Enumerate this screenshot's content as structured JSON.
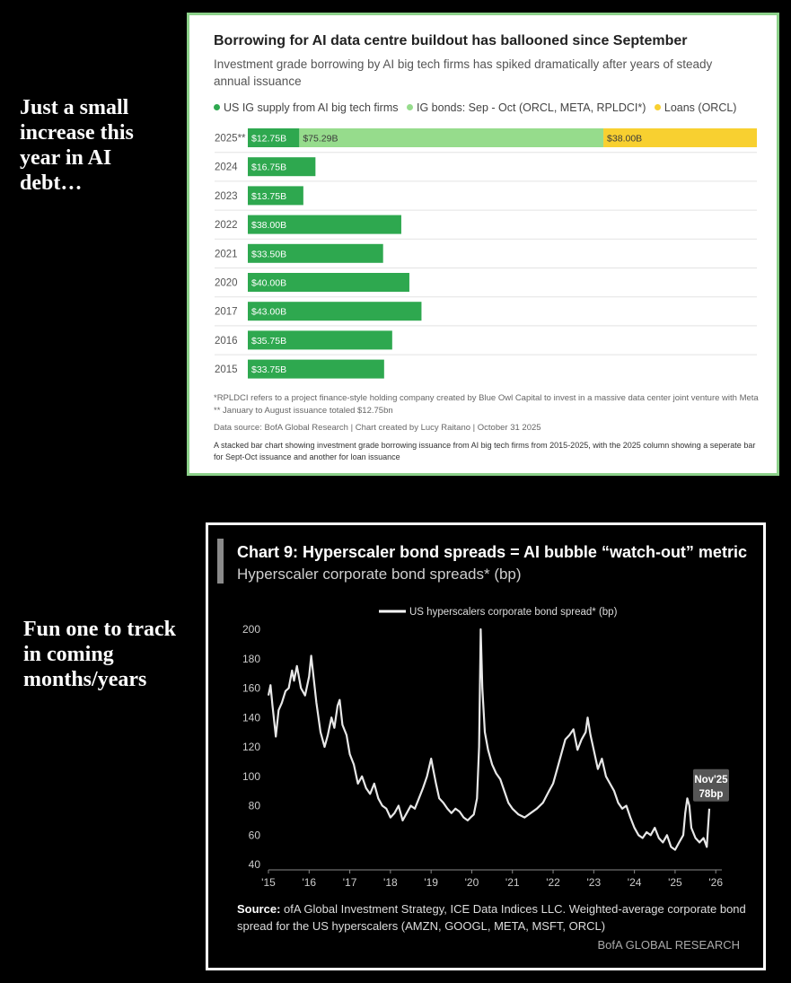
{
  "captions": {
    "top": "Just a small increase this year in AI debt…",
    "bottom": "Fun one to track in coming months/years"
  },
  "panel1": {
    "title": "Borrowing for AI data centre buildout has ballooned since September",
    "subtitle": "Investment grade borrowing by AI big tech firms has spiked dramatically after years of steady annual issuance",
    "footnote": "*RPLDCI refers to a project finance-style holding company created by Blue Owl Capital to invest in a massive data center joint venture with Meta ** January to August issuance totaled $12.75bn",
    "source": "Data source: BofA Global Research | Chart created by Lucy Raitano | October 31 2025",
    "description": "A stacked bar chart showing investment grade borrowing issuance from AI big tech firms from 2015-2025, with the 2025 column showing a seperate bar for Sept-Oct issuance and another for loan issuance"
  },
  "panel2": {
    "title": "Chart 9: Hyperscaler bond spreads = AI bubble “watch-out” metric",
    "subtitle": "Hyperscaler corporate bond spreads* (bp)",
    "source_label": "Source:",
    "source_text": " ofA Global Investment Strategy, ICE Data Indices LLC. Weighted-average corporate bond spread for the US hyperscalers (AMZN, GOOGL, META, MSFT, ORCL)",
    "brand": "BofA GLOBAL RESEARCH"
  },
  "colors": {
    "dark_green": "#2ea84f",
    "light_green": "#96dc8c",
    "yellow": "#f8d030"
  },
  "chart_data": [
    {
      "type": "bar",
      "orientation": "horizontal",
      "stacked": true,
      "categories": [
        "2025**",
        "2024",
        "2023",
        "2022",
        "2021",
        "2020",
        "2017",
        "2016",
        "2015"
      ],
      "series": [
        {
          "name": "US IG supply from AI big tech firms",
          "color": "#2ea84f",
          "values": [
            12.75,
            16.75,
            13.75,
            38.0,
            33.5,
            40.0,
            43.0,
            35.75,
            33.75
          ],
          "labels": [
            "$12.75B",
            "$16.75B",
            "$13.75B",
            "$38.00B",
            "$33.50B",
            "$40.00B",
            "$43.00B",
            "$35.75B",
            "$33.75B"
          ]
        },
        {
          "name": "IG bonds: Sep - Oct (ORCL, META, RPLDCI*)",
          "color": "#96dc8c",
          "values": [
            75.29,
            0,
            0,
            0,
            0,
            0,
            0,
            0,
            0
          ],
          "labels": [
            "$75.29B",
            "",
            "",
            "",
            "",
            "",
            "",
            "",
            ""
          ]
        },
        {
          "name": "Loans (ORCL)",
          "color": "#f8d030",
          "values": [
            38.0,
            0,
            0,
            0,
            0,
            0,
            0,
            0,
            0
          ],
          "labels": [
            "$38.00B",
            "",
            "",
            "",
            "",
            "",
            "",
            "",
            ""
          ]
        }
      ],
      "xlim": [
        0,
        126.04
      ],
      "legend": "top",
      "grid": false
    },
    {
      "type": "line",
      "legend_label": "US hyperscalers corporate bond spread* (bp)",
      "ylim": [
        40,
        200
      ],
      "yticks": [
        40,
        60,
        80,
        100,
        120,
        140,
        160,
        180,
        200
      ],
      "xlim": [
        2015,
        2026.15
      ],
      "xticks": [
        {
          "v": 2015,
          "label": "'15"
        },
        {
          "v": 2016,
          "label": "'16"
        },
        {
          "v": 2017,
          "label": "'17"
        },
        {
          "v": 2018,
          "label": "'18"
        },
        {
          "v": 2019,
          "label": "'19"
        },
        {
          "v": 2020,
          "label": "'20"
        },
        {
          "v": 2021,
          "label": "'21"
        },
        {
          "v": 2022,
          "label": "'22"
        },
        {
          "v": 2023,
          "label": "'23"
        },
        {
          "v": 2024,
          "label": "'24"
        },
        {
          "v": 2025,
          "label": "'25"
        },
        {
          "v": 2026,
          "label": "'26"
        }
      ],
      "annotation": {
        "date": "Nov'25",
        "value": "78bp",
        "x": 2025.84,
        "y": 78
      },
      "grid": false,
      "points": [
        [
          2015.0,
          155
        ],
        [
          2015.05,
          162
        ],
        [
          2015.1,
          148
        ],
        [
          2015.15,
          135
        ],
        [
          2015.18,
          127
        ],
        [
          2015.25,
          145
        ],
        [
          2015.33,
          150
        ],
        [
          2015.42,
          158
        ],
        [
          2015.5,
          160
        ],
        [
          2015.58,
          172
        ],
        [
          2015.63,
          165
        ],
        [
          2015.7,
          175
        ],
        [
          2015.8,
          160
        ],
        [
          2015.9,
          155
        ],
        [
          2016.0,
          168
        ],
        [
          2016.05,
          182
        ],
        [
          2016.1,
          170
        ],
        [
          2016.18,
          150
        ],
        [
          2016.28,
          130
        ],
        [
          2016.38,
          120
        ],
        [
          2016.46,
          128
        ],
        [
          2016.55,
          140
        ],
        [
          2016.62,
          133
        ],
        [
          2016.7,
          148
        ],
        [
          2016.75,
          152
        ],
        [
          2016.82,
          135
        ],
        [
          2016.92,
          128
        ],
        [
          2017.0,
          115
        ],
        [
          2017.1,
          108
        ],
        [
          2017.2,
          95
        ],
        [
          2017.3,
          100
        ],
        [
          2017.4,
          92
        ],
        [
          2017.5,
          88
        ],
        [
          2017.6,
          95
        ],
        [
          2017.7,
          85
        ],
        [
          2017.8,
          80
        ],
        [
          2017.9,
          78
        ],
        [
          2018.0,
          72
        ],
        [
          2018.1,
          75
        ],
        [
          2018.2,
          80
        ],
        [
          2018.3,
          70
        ],
        [
          2018.4,
          75
        ],
        [
          2018.5,
          80
        ],
        [
          2018.6,
          78
        ],
        [
          2018.7,
          85
        ],
        [
          2018.8,
          92
        ],
        [
          2018.9,
          100
        ],
        [
          2019.0,
          112
        ],
        [
          2019.05,
          105
        ],
        [
          2019.12,
          95
        ],
        [
          2019.2,
          85
        ],
        [
          2019.3,
          82
        ],
        [
          2019.4,
          78
        ],
        [
          2019.5,
          75
        ],
        [
          2019.6,
          78
        ],
        [
          2019.7,
          76
        ],
        [
          2019.8,
          72
        ],
        [
          2019.9,
          70
        ],
        [
          2019.97,
          72
        ],
        [
          2020.05,
          74
        ],
        [
          2020.13,
          85
        ],
        [
          2020.18,
          120
        ],
        [
          2020.22,
          200
        ],
        [
          2020.26,
          160
        ],
        [
          2020.32,
          130
        ],
        [
          2020.4,
          118
        ],
        [
          2020.5,
          108
        ],
        [
          2020.6,
          102
        ],
        [
          2020.7,
          98
        ],
        [
          2020.8,
          90
        ],
        [
          2020.9,
          82
        ],
        [
          2021.0,
          78
        ],
        [
          2021.15,
          74
        ],
        [
          2021.3,
          72
        ],
        [
          2021.45,
          75
        ],
        [
          2021.6,
          78
        ],
        [
          2021.75,
          82
        ],
        [
          2021.9,
          90
        ],
        [
          2022.0,
          95
        ],
        [
          2022.1,
          105
        ],
        [
          2022.2,
          115
        ],
        [
          2022.3,
          125
        ],
        [
          2022.4,
          128
        ],
        [
          2022.5,
          132
        ],
        [
          2022.6,
          118
        ],
        [
          2022.7,
          125
        ],
        [
          2022.8,
          130
        ],
        [
          2022.85,
          140
        ],
        [
          2022.92,
          128
        ],
        [
          2023.0,
          118
        ],
        [
          2023.1,
          105
        ],
        [
          2023.2,
          112
        ],
        [
          2023.3,
          100
        ],
        [
          2023.4,
          95
        ],
        [
          2023.5,
          90
        ],
        [
          2023.6,
          82
        ],
        [
          2023.7,
          78
        ],
        [
          2023.8,
          80
        ],
        [
          2023.9,
          72
        ],
        [
          2024.0,
          65
        ],
        [
          2024.1,
          60
        ],
        [
          2024.2,
          58
        ],
        [
          2024.3,
          62
        ],
        [
          2024.4,
          60
        ],
        [
          2024.5,
          65
        ],
        [
          2024.6,
          58
        ],
        [
          2024.7,
          55
        ],
        [
          2024.8,
          60
        ],
        [
          2024.9,
          52
        ],
        [
          2025.0,
          50
        ],
        [
          2025.1,
          55
        ],
        [
          2025.2,
          60
        ],
        [
          2025.25,
          75
        ],
        [
          2025.3,
          85
        ],
        [
          2025.35,
          80
        ],
        [
          2025.4,
          65
        ],
        [
          2025.5,
          58
        ],
        [
          2025.6,
          55
        ],
        [
          2025.7,
          58
        ],
        [
          2025.78,
          52
        ],
        [
          2025.84,
          78
        ]
      ]
    }
  ]
}
